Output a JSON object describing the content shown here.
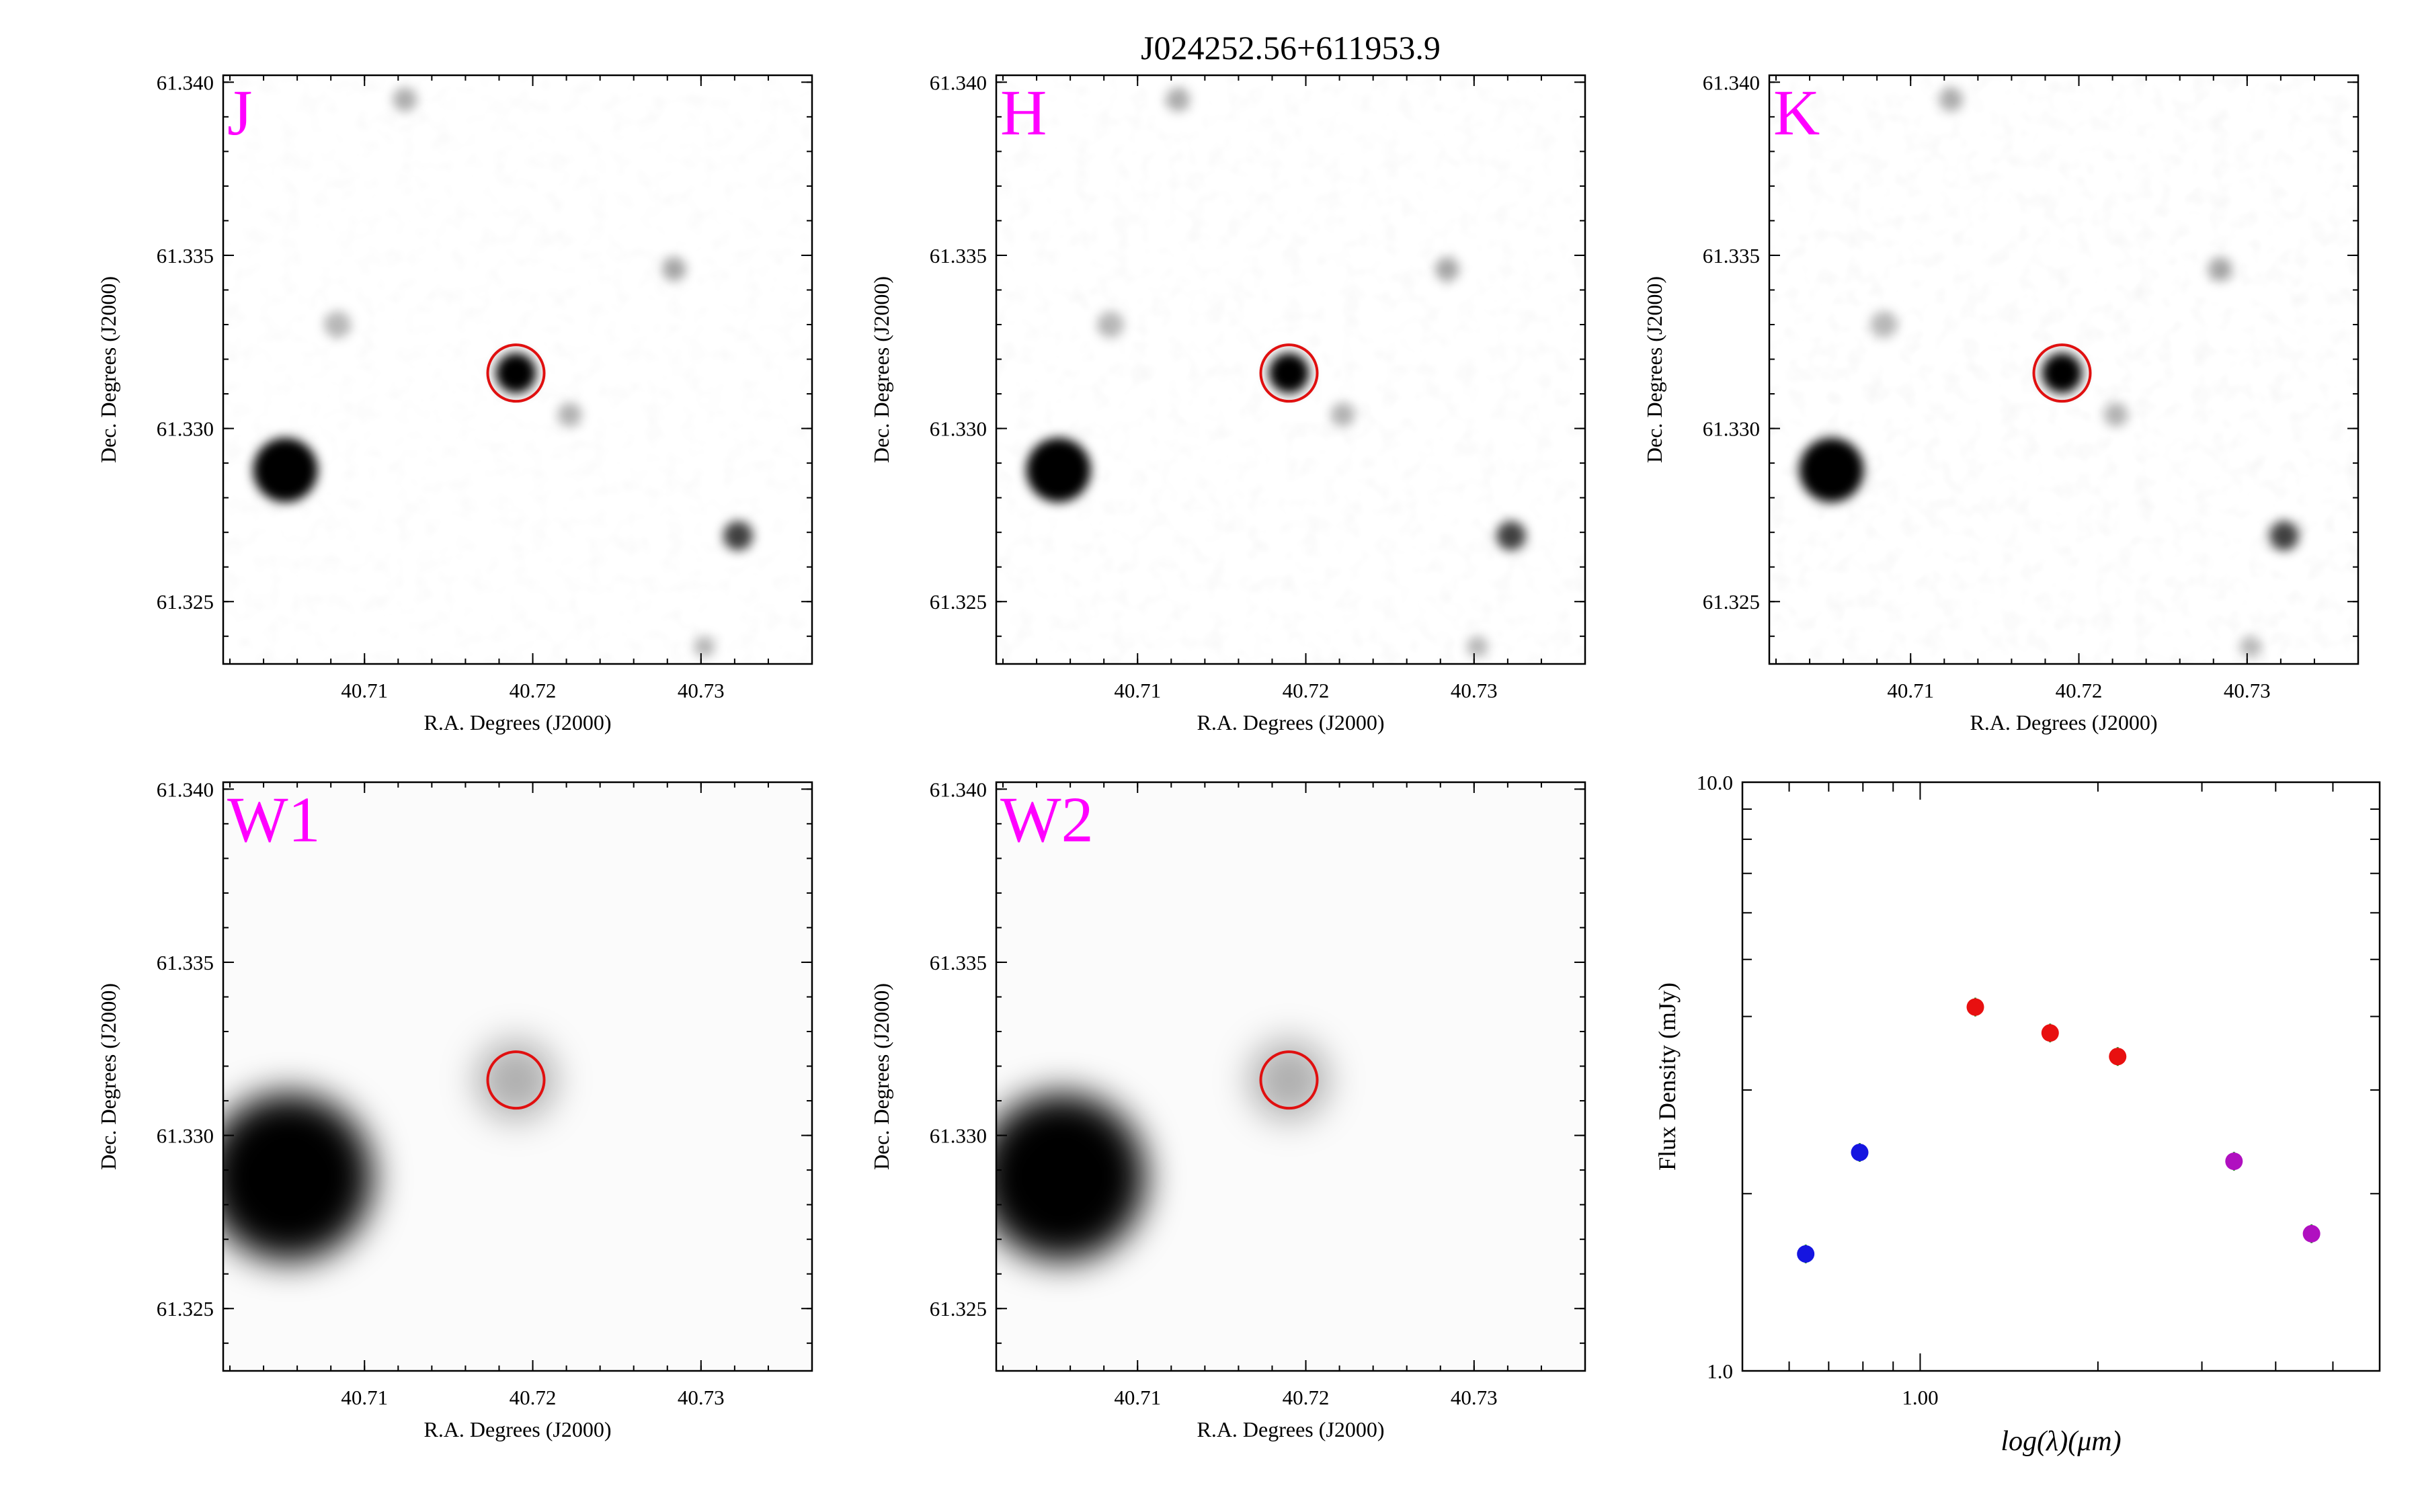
{
  "figure": {
    "title": "J024252.56+611953.9"
  },
  "image_panels": [
    {
      "band": "J",
      "xlabel": "R.A. Degrees (J2000)",
      "ylabel": "Dec. Degrees (J2000)",
      "x_ticks": [
        "40.71",
        "40.72",
        "40.73"
      ],
      "y_ticks": [
        "61.340",
        "61.335",
        "61.330",
        "61.325"
      ],
      "style": "2mass",
      "target_circle": {
        "ra": 40.719,
        "dec": 61.3316
      }
    },
    {
      "band": "H",
      "xlabel": "R.A. Degrees (J2000)",
      "ylabel": "Dec. Degrees (J2000)",
      "x_ticks": [
        "40.71",
        "40.72",
        "40.73"
      ],
      "y_ticks": [
        "61.340",
        "61.335",
        "61.330",
        "61.325"
      ],
      "style": "2mass",
      "target_circle": {
        "ra": 40.719,
        "dec": 61.3316
      }
    },
    {
      "band": "K",
      "xlabel": "R.A. Degrees (J2000)",
      "ylabel": "Dec. Degrees (J2000)",
      "x_ticks": [
        "40.71",
        "40.72",
        "40.73"
      ],
      "y_ticks": [
        "61.340",
        "61.335",
        "61.330",
        "61.325"
      ],
      "style": "2mass",
      "target_circle": {
        "ra": 40.719,
        "dec": 61.3316
      }
    },
    {
      "band": "W1",
      "xlabel": "R.A. Degrees (J2000)",
      "ylabel": "Dec. Degrees (J2000)",
      "x_ticks": [
        "40.71",
        "40.72",
        "40.73"
      ],
      "y_ticks": [
        "61.340",
        "61.335",
        "61.330",
        "61.325"
      ],
      "style": "wise",
      "target_circle": {
        "ra": 40.719,
        "dec": 61.3316
      }
    },
    {
      "band": "W2",
      "xlabel": "R.A. Degrees (J2000)",
      "ylabel": "Dec. Degrees (J2000)",
      "x_ticks": [
        "40.71",
        "40.72",
        "40.73"
      ],
      "y_ticks": [
        "61.340",
        "61.335",
        "61.330",
        "61.325"
      ],
      "style": "wise",
      "target_circle": {
        "ra": 40.719,
        "dec": 61.3316
      }
    }
  ],
  "colors": {
    "band_label": "#ff00ff",
    "target_circle": "#e01010",
    "optical_points": "#1515e0",
    "nir_points": "#e81010",
    "wise_points": "#b010c0"
  },
  "chart_data": {
    "type": "scatter",
    "xlabel": "log(λ)(μm)",
    "ylabel": "Flux Density (mJy)",
    "x_scale": "log",
    "y_scale": "log",
    "xlim": [
      0.5,
      6.0
    ],
    "ylim": [
      1.0,
      10.0
    ],
    "x_tick_labels": [
      "1.00"
    ],
    "y_tick_labels": [
      "10.0",
      "1.0"
    ],
    "series": [
      {
        "color": "#1515e0",
        "x": [
          0.64,
          0.79
        ],
        "y": [
          1.58,
          2.35
        ]
      },
      {
        "color": "#e81010",
        "x": [
          1.24,
          1.66,
          2.16
        ],
        "y": [
          4.15,
          3.75,
          3.42
        ]
      },
      {
        "color": "#b010c0",
        "x": [
          3.4,
          4.6
        ],
        "y": [
          2.27,
          1.71
        ]
      }
    ]
  }
}
